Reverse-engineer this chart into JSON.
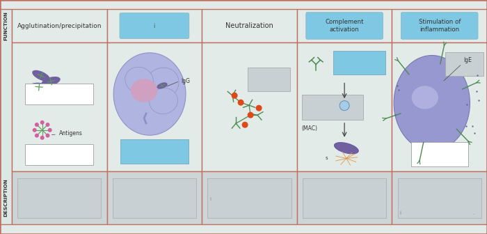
{
  "bg_outer": "#e2ebe8",
  "bg_cell": "#e2ebe8",
  "border_color": "#c07060",
  "side_label_bg": "#dce8e5",
  "side_label_text_color": "#333333",
  "box_blue": "#7ec8e3",
  "box_white": "#ffffff",
  "box_gray_desc": "#cdd5d7",
  "box_gray_illus": "#c8d0d3",
  "bact_color": "#7060a0",
  "bact_green": "#5a9a5a",
  "pink_node": "#d060a0",
  "cell_blue": "#a0a8d8",
  "cell_edge": "#8888c0",
  "red_node": "#e04818",
  "green_net": "#4a8a50",
  "arrow_color": "#444444",
  "mac_text": "(MAC)",
  "s_text": "s",
  "igg_text": "IgG",
  "ige_text": "IgE",
  "antigens_text": "Antigens",
  "col0_func_text": "Agglutination/precipitation",
  "col2_func_text": "Neutralization",
  "col1_func_label": "i",
  "col3_func_label": "Complement\nactivation",
  "col4_func_label": "Stimulation of\ninflammation",
  "func_label": "FUNCTION",
  "desc_label": "DESCRIPTION"
}
